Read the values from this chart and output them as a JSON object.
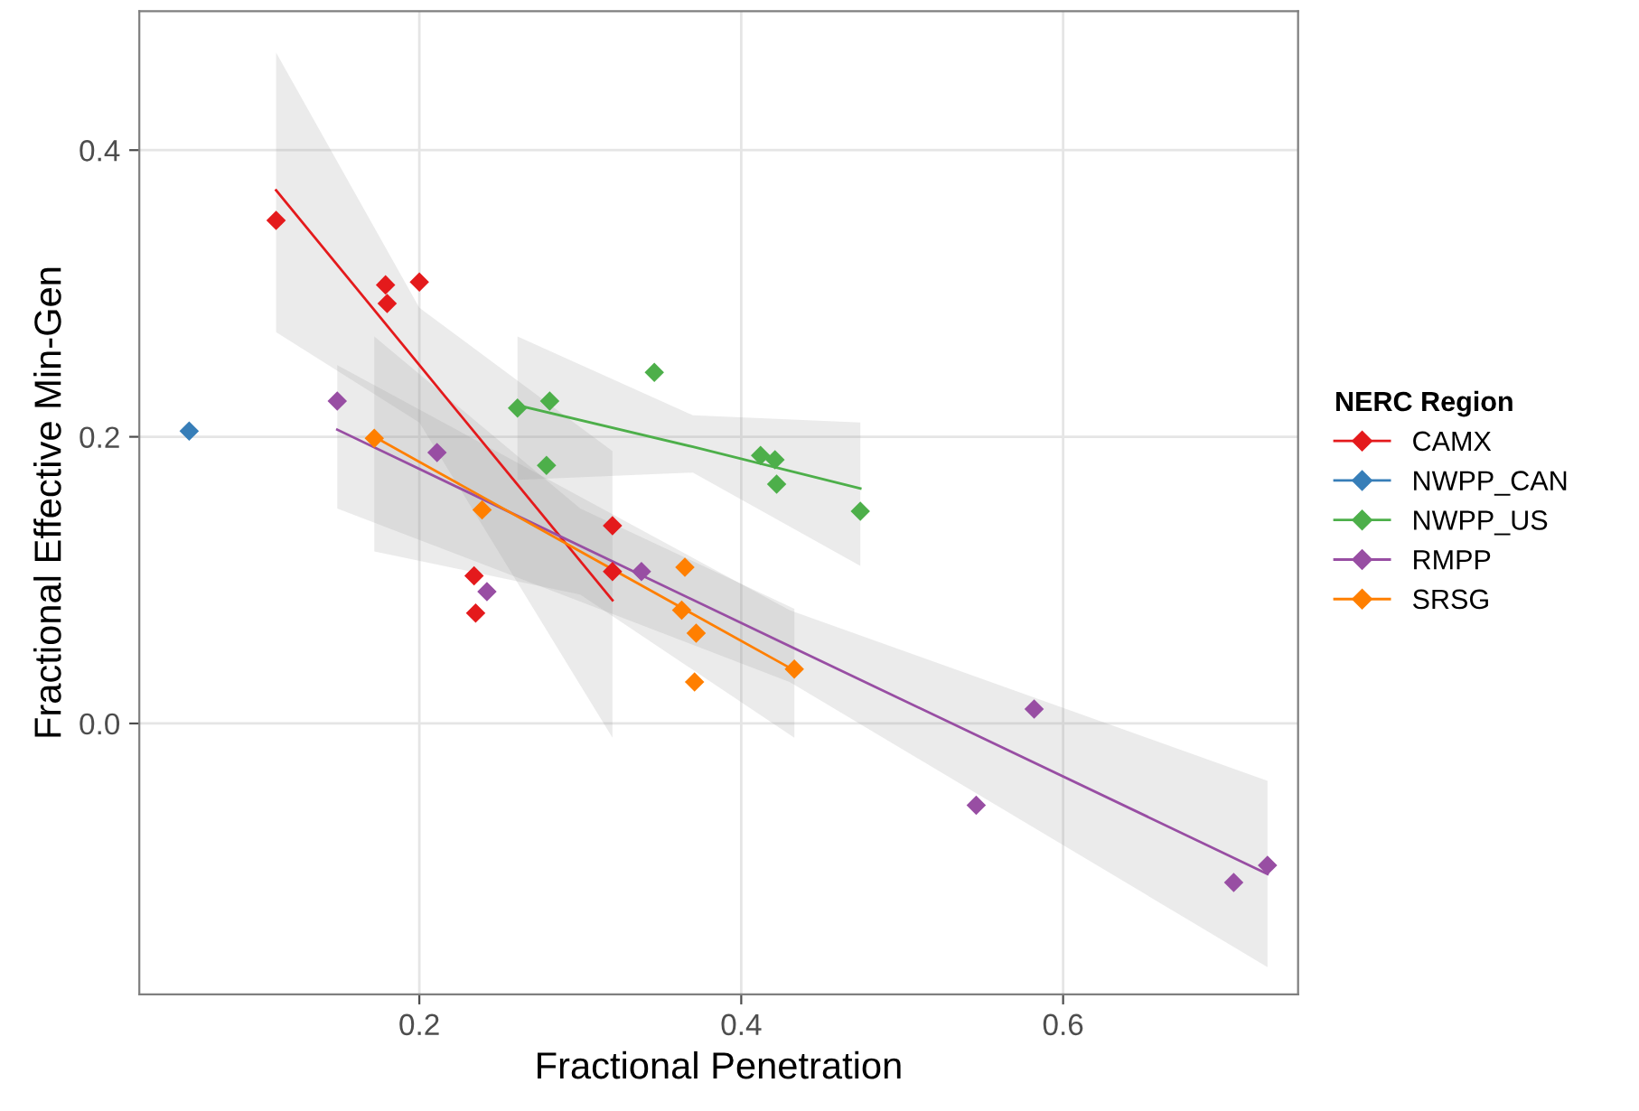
{
  "chart_data": {
    "type": "scatter",
    "xlabel": "Fractional Penetration",
    "ylabel": "Fractional Effective Min-Gen",
    "legend_title": "NERC Region",
    "legend": "right",
    "grid": true,
    "marker": "diamond",
    "xlim": [
      0.026,
      0.746
    ],
    "ylim": [
      -0.189,
      0.497
    ],
    "xticks": [
      0.2,
      0.4,
      0.6
    ],
    "yticks": [
      {
        "value": 0,
        "label": "0.0"
      },
      0.2,
      0.4
    ],
    "series": [
      {
        "name": "CAMX",
        "color": "#e41a1c",
        "x": [
          0.111,
          0.179,
          0.18,
          0.2,
          0.234,
          0.32,
          0.235,
          0.32
        ],
        "values": [
          0.351,
          0.306,
          0.293,
          0.308,
          0.103,
          0.138,
          0.077,
          0.106
        ]
      },
      {
        "name": "NWPP_CAN",
        "color": "#377eb8",
        "x": [
          0.057
        ],
        "values": [
          0.204
        ]
      },
      {
        "name": "NWPP_US",
        "color": "#4daf4a",
        "x": [
          0.261,
          0.281,
          0.346,
          0.279,
          0.412,
          0.421,
          0.422,
          0.474
        ],
        "values": [
          0.22,
          0.225,
          0.245,
          0.18,
          0.187,
          0.184,
          0.167,
          0.148
        ]
      },
      {
        "name": "RMPP",
        "color": "#984ea3",
        "x": [
          0.149,
          0.211,
          0.242,
          0.338,
          0.582,
          0.546,
          0.706,
          0.727
        ],
        "values": [
          0.225,
          0.189,
          0.092,
          0.106,
          0.01,
          -0.057,
          -0.111,
          -0.099
        ]
      },
      {
        "name": "SRSG",
        "color": "#ff7f00",
        "x": [
          0.172,
          0.239,
          0.365,
          0.363,
          0.372,
          0.371,
          0.433
        ],
        "values": [
          0.199,
          0.149,
          0.109,
          0.079,
          0.063,
          0.029,
          0.038
        ]
      },
      {
        "type": "line",
        "marker": "none",
        "color": "#e41a1c",
        "x": [
          0.111,
          0.2,
          0.32
        ],
        "values": [
          0.372,
          0.25,
          0.086
        ],
        "lower": [
          0.273,
          0.21,
          -0.01
        ],
        "upper": [
          0.468,
          0.29,
          0.19
        ]
      },
      {
        "type": "line",
        "marker": "none",
        "color": "#4daf4a",
        "x": [
          0.261,
          0.37,
          0.474
        ],
        "values": [
          0.222,
          0.193,
          0.164
        ],
        "lower": [
          0.17,
          0.175,
          0.11
        ],
        "upper": [
          0.27,
          0.215,
          0.21
        ]
      },
      {
        "type": "line",
        "marker": "none",
        "color": "#984ea3",
        "x": [
          0.149,
          0.43,
          0.727
        ],
        "values": [
          0.205,
          0.054,
          -0.105
        ],
        "lower": [
          0.15,
          0.029,
          -0.17
        ],
        "upper": [
          0.25,
          0.079,
          -0.04
        ]
      },
      {
        "type": "line",
        "marker": "none",
        "color": "#ff7f00",
        "x": [
          0.172,
          0.3,
          0.433
        ],
        "values": [
          0.2,
          0.12,
          0.037
        ],
        "lower": [
          0.12,
          0.09,
          -0.01
        ],
        "upper": [
          0.27,
          0.15,
          0.08
        ]
      }
    ]
  }
}
